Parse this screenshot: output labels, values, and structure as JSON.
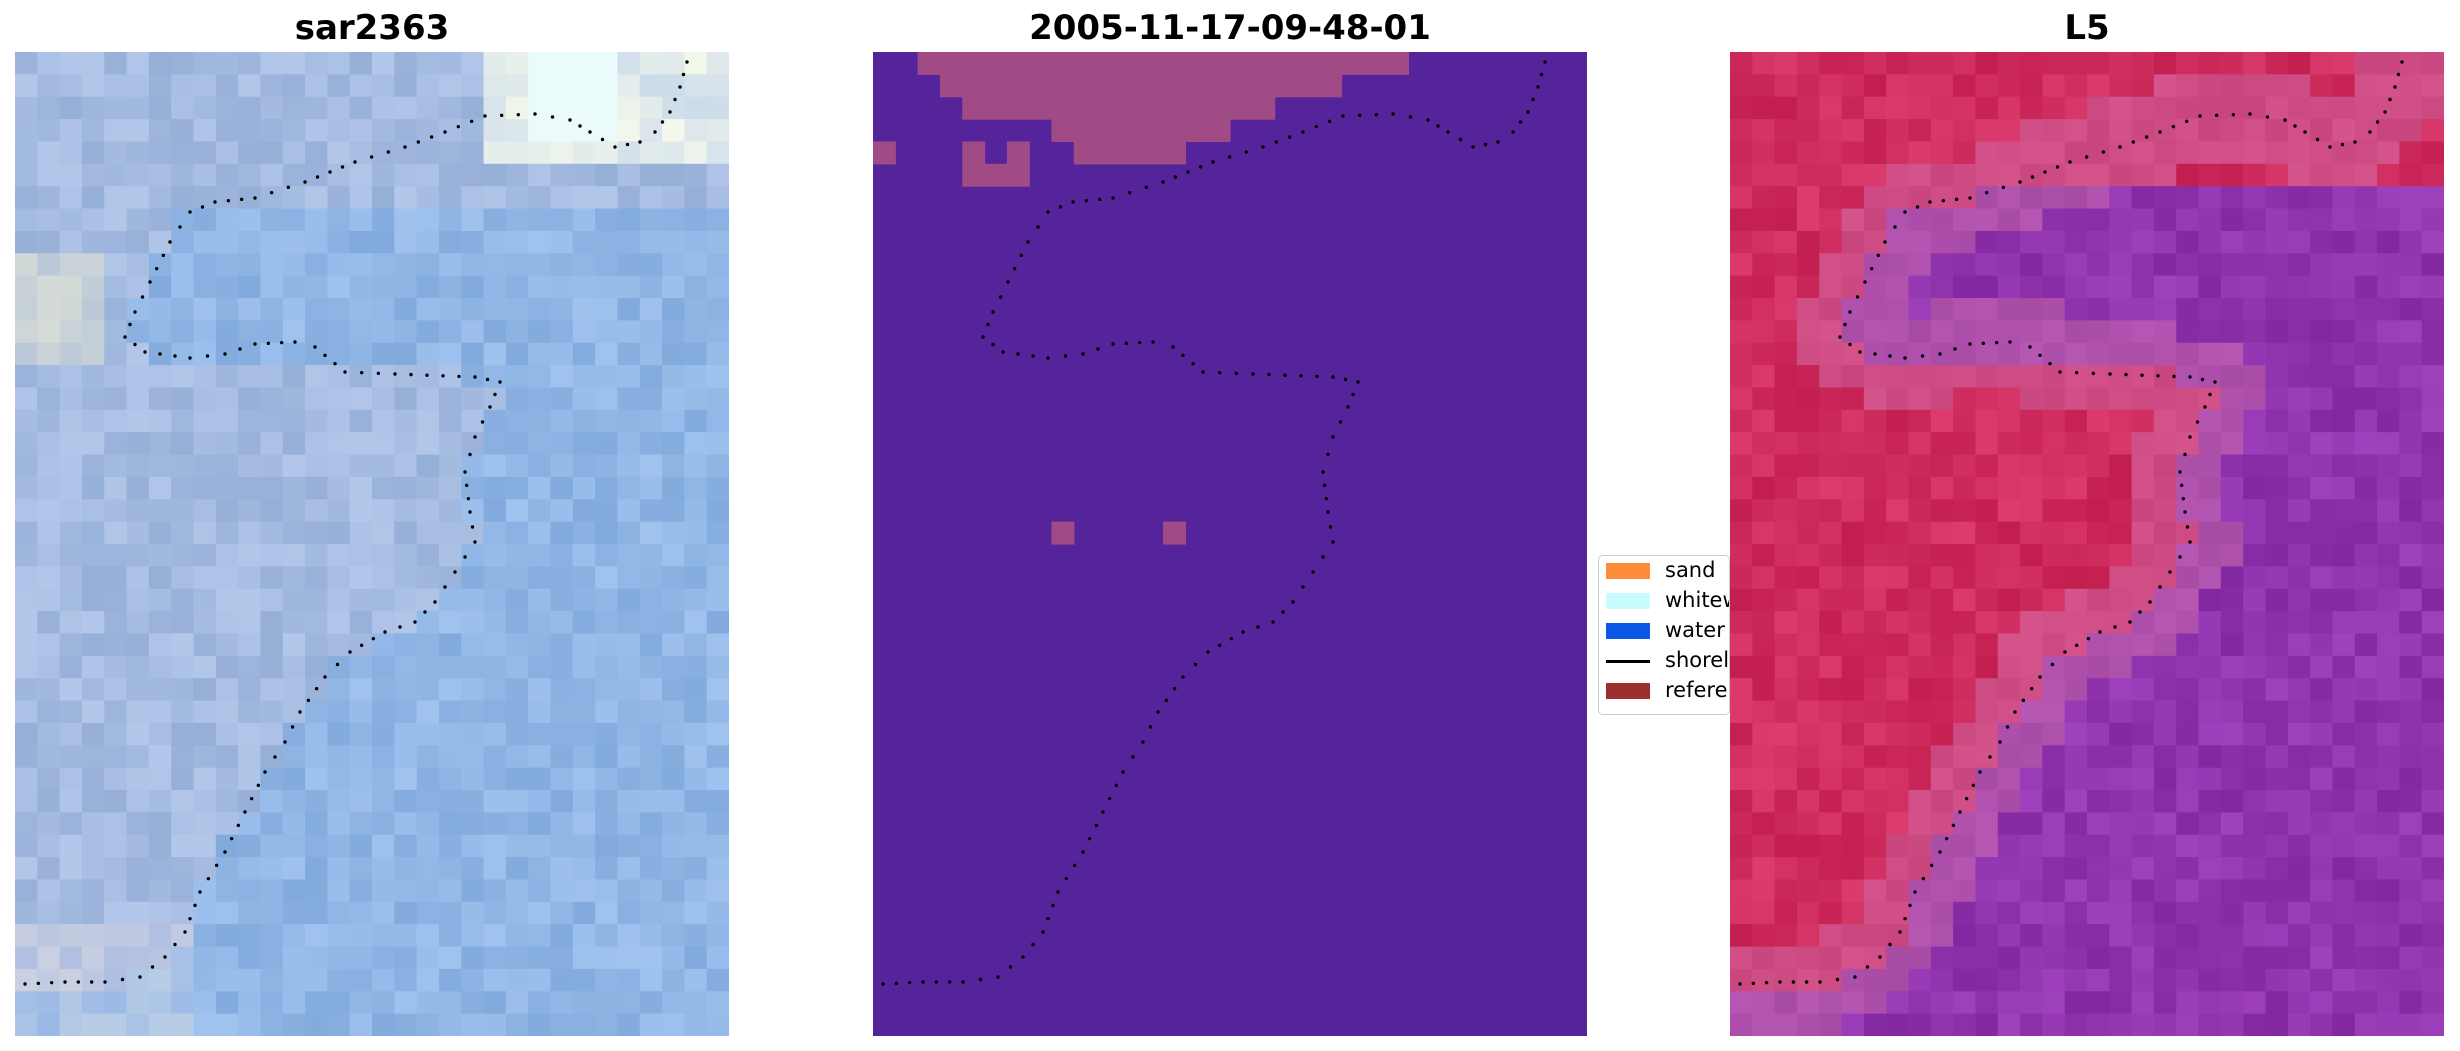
{
  "panels": [
    {
      "title": "sar2363",
      "colormap": "rgb-image"
    },
    {
      "title": "2005-11-17-09-48-01",
      "colormap": "classification"
    },
    {
      "title": "L5",
      "colormap": "index"
    }
  ],
  "legend": {
    "items": [
      {
        "label": "sand",
        "color": "#ff8c3a",
        "kind": "patch"
      },
      {
        "label": "whitew",
        "color": "#c8fcff",
        "kind": "patch"
      },
      {
        "label": "water",
        "color": "#0b57e6",
        "kind": "patch"
      },
      {
        "label": "shorel",
        "color": "#000000",
        "kind": "line"
      },
      {
        "label": "referer",
        "color": "#9b2f30",
        "kind": "patch"
      }
    ]
  },
  "colors": {
    "class_background": "#55249a",
    "class_sand": "#a04a86",
    "shoreline_dots": "#000000"
  }
}
